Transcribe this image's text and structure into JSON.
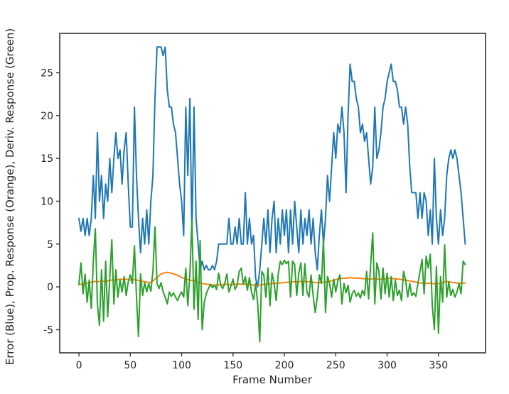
{
  "figure": {
    "background": "#ffffff",
    "spine_color": "#333333",
    "text_color": "#262626"
  },
  "chart_data": {
    "type": "line",
    "title": "",
    "xlabel": "Frame Number",
    "ylabel": "Error (Blue), Prop. Response (Orange), Deriv. Response (Green)",
    "grid": false,
    "legend_position": "none",
    "xlim": [
      -18.7,
      395.8
    ],
    "ylim": [
      -7.7,
      29.6
    ],
    "x_ticks": [
      0,
      50,
      100,
      150,
      200,
      250,
      300,
      350
    ],
    "y_ticks": [
      -5,
      0,
      5,
      10,
      15,
      20,
      25
    ],
    "x": [
      0,
      2,
      4,
      6,
      8,
      10,
      12,
      14,
      16,
      18,
      20,
      22,
      24,
      26,
      28,
      30,
      32,
      34,
      36,
      38,
      40,
      42,
      44,
      46,
      48,
      50,
      52,
      54,
      56,
      58,
      60,
      62,
      64,
      66,
      68,
      70,
      72,
      74,
      76,
      78,
      80,
      82,
      84,
      86,
      88,
      90,
      92,
      94,
      96,
      98,
      100,
      102,
      104,
      106,
      108,
      110,
      112,
      114,
      116,
      118,
      120,
      122,
      124,
      126,
      128,
      130,
      132,
      134,
      136,
      138,
      140,
      142,
      144,
      146,
      148,
      150,
      152,
      154,
      156,
      158,
      160,
      162,
      164,
      166,
      168,
      170,
      172,
      174,
      176,
      178,
      180,
      182,
      184,
      186,
      188,
      190,
      192,
      194,
      196,
      198,
      200,
      202,
      204,
      206,
      208,
      210,
      212,
      214,
      216,
      218,
      220,
      222,
      224,
      226,
      228,
      230,
      232,
      234,
      236,
      238,
      240,
      242,
      244,
      246,
      248,
      250,
      252,
      254,
      256,
      258,
      260,
      262,
      264,
      266,
      268,
      270,
      272,
      274,
      276,
      278,
      280,
      282,
      284,
      286,
      288,
      290,
      292,
      294,
      296,
      298,
      300,
      302,
      304,
      306,
      308,
      310,
      312,
      314,
      316,
      318,
      320,
      322,
      324,
      326,
      328,
      330,
      332,
      334,
      336,
      338,
      340,
      342,
      344,
      346,
      348,
      350,
      352,
      354,
      356,
      358,
      360,
      362,
      364,
      366,
      368,
      370,
      372,
      374,
      376
    ],
    "series": [
      {
        "name": "Error",
        "color": "#1f77b4",
        "values": [
          8,
          6.5,
          8,
          6,
          8,
          6,
          8,
          13,
          8,
          18,
          10,
          13,
          8,
          12,
          10,
          15,
          11,
          15,
          18,
          15,
          16,
          12,
          16,
          18,
          12,
          7,
          7,
          21,
          13,
          8,
          4,
          8,
          5,
          9,
          5,
          10,
          13,
          22,
          28,
          28,
          28,
          27,
          28,
          23,
          21,
          21,
          19,
          18,
          15,
          12,
          10,
          6,
          21,
          13,
          22,
          6,
          21,
          8,
          5,
          2,
          3,
          2,
          2.5,
          2,
          2,
          2.5,
          2,
          3,
          5,
          5,
          5,
          5,
          5,
          8,
          5,
          5,
          7,
          5,
          8,
          5,
          5,
          11,
          5,
          8,
          5,
          6,
          1,
          0,
          2,
          5,
          8,
          5,
          9,
          4,
          8,
          10,
          4,
          8,
          5,
          9,
          6,
          9,
          4,
          9,
          5,
          10,
          7,
          4,
          9,
          5,
          8,
          6,
          9,
          5,
          8,
          4,
          2,
          6,
          9,
          5,
          8,
          13,
          10,
          14,
          18,
          15,
          19,
          18,
          21,
          18,
          11,
          20,
          26,
          24,
          24,
          22,
          21,
          18,
          19,
          17,
          18,
          15,
          12,
          14,
          21,
          15,
          16,
          18,
          21,
          22,
          24,
          25,
          26,
          24,
          24,
          23,
          21,
          21,
          19,
          21,
          19,
          14,
          11,
          11,
          11,
          8,
          11,
          8,
          11,
          10,
          6,
          9,
          5,
          15,
          8,
          5,
          9,
          6,
          8,
          13,
          15,
          16,
          15,
          16,
          15,
          13,
          11,
          8,
          5
        ]
      },
      {
        "name": "Prop. Response",
        "color": "#ff7f0e",
        "values": [
          0.25,
          0.3,
          0.35,
          0.4,
          0.45,
          0.5,
          0.55,
          0.6,
          0.65,
          0.6,
          0.65,
          0.7,
          0.65,
          0.7,
          0.7,
          0.75,
          0.8,
          0.8,
          0.85,
          0.85,
          0.9,
          0.9,
          0.85,
          0.9,
          0.85,
          0.8,
          0.8,
          0.85,
          0.8,
          0.75,
          0.7,
          0.65,
          0.6,
          0.55,
          0.5,
          0.55,
          0.7,
          0.9,
          1.1,
          1.3,
          1.5,
          1.6,
          1.65,
          1.7,
          1.65,
          1.6,
          1.5,
          1.45,
          1.35,
          1.25,
          1.1,
          1.0,
          0.9,
          0.85,
          0.8,
          0.75,
          0.7,
          0.6,
          0.5,
          0.45,
          0.4,
          0.35,
          0.3,
          0.3,
          0.25,
          0.25,
          0.2,
          0.2,
          0.25,
          0.25,
          0.3,
          0.3,
          0.3,
          0.3,
          0.25,
          0.3,
          0.3,
          0.3,
          0.35,
          0.3,
          0.3,
          0.35,
          0.3,
          0.3,
          0.25,
          0.2,
          0.15,
          0.15,
          0.2,
          0.25,
          0.3,
          0.3,
          0.35,
          0.35,
          0.4,
          0.4,
          0.4,
          0.45,
          0.45,
          0.5,
          0.5,
          0.55,
          0.55,
          0.55,
          0.6,
          0.6,
          0.6,
          0.6,
          0.65,
          0.6,
          0.65,
          0.6,
          0.6,
          0.6,
          0.55,
          0.5,
          0.5,
          0.5,
          0.5,
          0.55,
          0.55,
          0.6,
          0.65,
          0.7,
          0.75,
          0.85,
          0.9,
          0.95,
          1.0,
          1.0,
          1.0,
          1.05,
          1.05,
          1.05,
          1.0,
          1.05,
          1.0,
          1.0,
          0.95,
          0.95,
          0.9,
          0.9,
          0.9,
          0.95,
          0.95,
          0.9,
          0.9,
          0.9,
          0.95,
          0.95,
          1.0,
          1.0,
          1.0,
          0.95,
          0.95,
          0.9,
          0.9,
          0.85,
          0.8,
          0.8,
          0.75,
          0.7,
          0.65,
          0.6,
          0.55,
          0.5,
          0.45,
          0.45,
          0.4,
          0.4,
          0.4,
          0.45,
          0.4,
          0.35,
          0.35,
          0.4,
          0.45,
          0.5,
          0.6,
          0.65,
          0.6,
          0.55,
          0.5,
          0.5,
          0.45,
          0.45,
          0.4,
          0.45,
          0.45
        ]
      },
      {
        "name": "Deriv. Response",
        "color": "#2ca02c",
        "values": [
          0.3,
          2.8,
          -0.8,
          1.5,
          -1.8,
          0.8,
          -2.5,
          3,
          6.8,
          -2,
          -4.5,
          2,
          -4,
          3,
          -3.5,
          1,
          5.5,
          -2,
          2,
          -1.2,
          0.8,
          -0.6,
          1.2,
          -1,
          0.6,
          1.4,
          0.4,
          4.8,
          -1.2,
          -5.8,
          1.5,
          -1,
          0.5,
          -0.6,
          0.4,
          -0.5,
          1.8,
          7,
          0.4,
          -0.2,
          0.5,
          -0.6,
          -1.2,
          -2,
          -0.6,
          -1.1,
          -0.7,
          -1.2,
          -1.6,
          -1,
          -0.6,
          -1.2,
          2.2,
          -2.2,
          1.5,
          7.8,
          -2.6,
          3,
          -3.8,
          5.4,
          -5,
          -1.8,
          -0.8,
          -0.2,
          0.3,
          -0.1,
          0.2,
          -0.3,
          1.6,
          0.2,
          -0.2,
          0.4,
          1.5,
          -0.6,
          0.1,
          0.9,
          -0.3,
          0.2,
          1.8,
          2.2,
          0.3,
          1.2,
          -0.4,
          1.1,
          -0.6,
          -1.5,
          0.4,
          -2,
          -6.4,
          1.8,
          1.4,
          -1.2,
          2.2,
          -2.2,
          1.6,
          0.4,
          -1.6,
          1.5,
          3,
          2.6,
          3.1,
          2.7,
          3,
          -1.2,
          3,
          2.6,
          -1,
          1.6,
          2.8,
          -1,
          2.7,
          -0.6,
          -1.2,
          1.4,
          -1,
          -3,
          -1.2,
          1.4,
          0.4,
          5.5,
          -3,
          1.2,
          0.4,
          -1.2,
          0.9,
          -0.6,
          0.7,
          1.4,
          -2,
          0.4,
          -0.7,
          0.2,
          -1.8,
          -0.8,
          -0.4,
          -1.1,
          -0.7,
          -1.3,
          -0.4,
          -1,
          1.8,
          -1.4,
          2.6,
          6.3,
          -2,
          2.8,
          1.8,
          -1.4,
          2.2,
          -0.8,
          1.6,
          -1.2,
          1.2,
          -1.6,
          0.8,
          -1,
          -0.4,
          -1.6,
          1.8,
          0.8,
          -1.2,
          0.4,
          -1,
          -0.7,
          -1.1,
          0.4,
          1.8,
          3.2,
          -0.8,
          3.6,
          2.2,
          3.8,
          -2.2,
          -5,
          2.4,
          -5.4,
          1.2,
          -1.8,
          4.9,
          -1.2,
          0.6,
          -1,
          -0.3,
          -1.2,
          -0.6,
          0.4,
          -0.8,
          3,
          2.6
        ]
      }
    ]
  }
}
